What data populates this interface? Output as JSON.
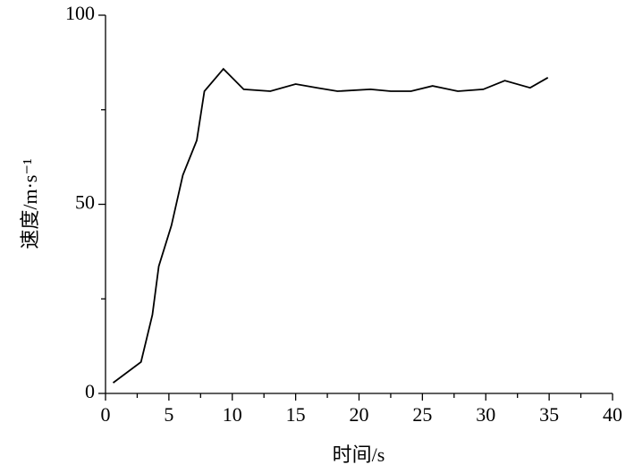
{
  "chart_data": {
    "type": "line",
    "x_label": "时间/s",
    "y_label": "速度/m·s⁻¹",
    "series": [
      {
        "color": "#000000",
        "x": [
          0.6,
          2.8,
          3.7,
          4.2,
          5.2,
          6.1,
          7.2,
          7.8,
          9.3,
          10.9,
          13.0,
          15.0,
          16.7,
          18.3,
          20.9,
          22.5,
          24.1,
          25.8,
          27.8,
          29.8,
          31.5,
          33.5,
          34.9
        ],
        "values": [
          2.8,
          8.3,
          20.8,
          33.6,
          44.4,
          57.7,
          66.9,
          79.9,
          85.8,
          80.4,
          79.9,
          81.8,
          80.8,
          79.9,
          80.4,
          79.9,
          79.9,
          81.3,
          79.9,
          80.4,
          82.7,
          80.8,
          83.5
        ]
      }
    ],
    "xlim": [
      0,
      40
    ],
    "xticks": [
      0,
      5,
      10,
      15,
      20,
      25,
      30,
      35,
      40
    ],
    "xminorticks": [
      2.5,
      7.5,
      12.5,
      17.5,
      22.5,
      27.5,
      32.5,
      37.5
    ],
    "ylim": [
      0,
      100
    ],
    "yticks": [
      0,
      50,
      100
    ],
    "yminorticks": [
      25,
      75
    ]
  }
}
